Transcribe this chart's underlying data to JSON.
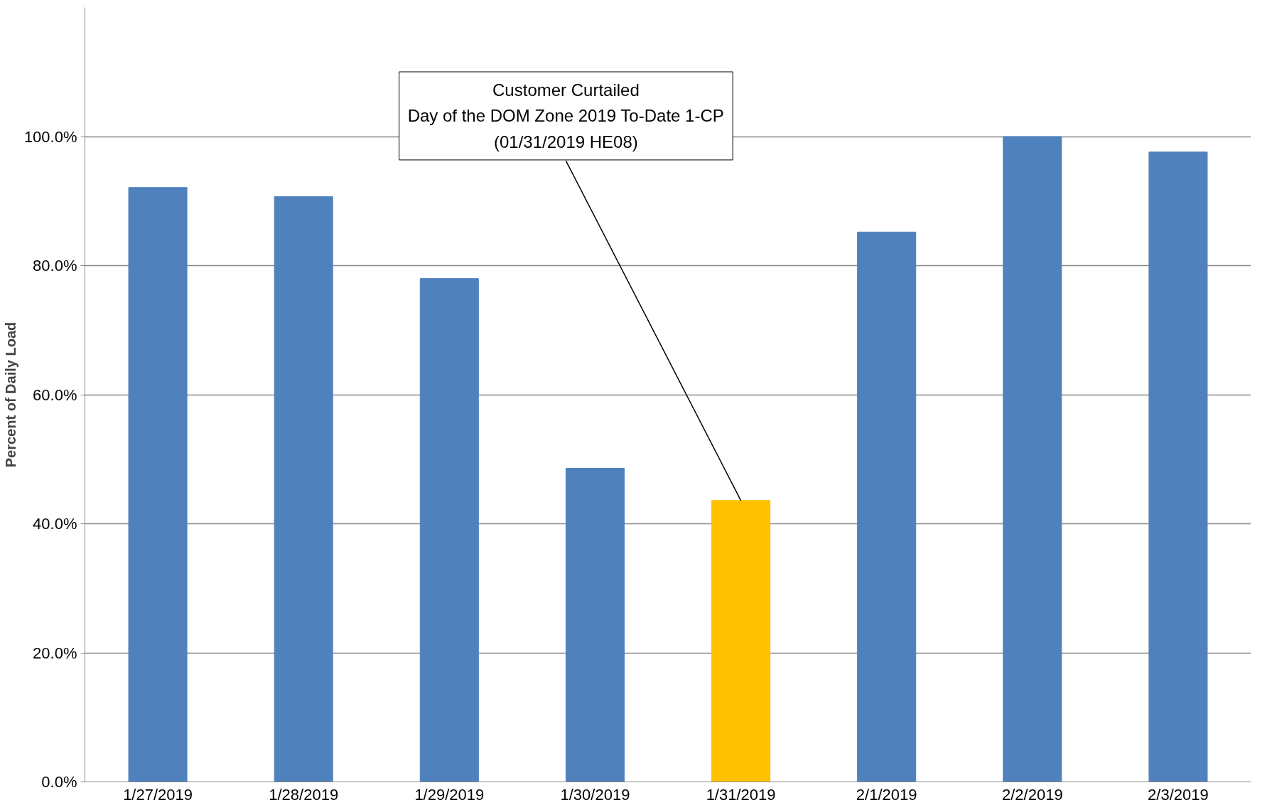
{
  "chart_data": {
    "type": "bar",
    "ylabel": "Percent of Daily Load",
    "categories": [
      "1/27/2019",
      "1/28/2019",
      "1/29/2019",
      "1/30/2019",
      "1/31/2019",
      "2/1/2019",
      "2/2/2019",
      "2/3/2019"
    ],
    "values": [
      92.1,
      90.7,
      78.0,
      48.6,
      43.6,
      85.2,
      100.0,
      97.6
    ],
    "colors": [
      "#4f81bd",
      "#4f81bd",
      "#4f81bd",
      "#4f81bd",
      "#ffc000",
      "#4f81bd",
      "#4f81bd",
      "#4f81bd"
    ],
    "ylim": [
      0,
      120
    ],
    "yticks": [
      {
        "value": 0,
        "label": "0.0%"
      },
      {
        "value": 20,
        "label": "20.0%"
      },
      {
        "value": 40,
        "label": "40.0%"
      },
      {
        "value": 60,
        "label": "60.0%"
      },
      {
        "value": 80,
        "label": "80.0%"
      },
      {
        "value": 100,
        "label": "100.0%"
      }
    ],
    "grid": "y",
    "annotations": [
      {
        "text": "Customer Curtailed\nDay of the DOM Zone 2019 To-Date 1-CP\n(01/31/2019 HE08)",
        "x": "1/31/2019",
        "y": 43.6
      }
    ]
  }
}
